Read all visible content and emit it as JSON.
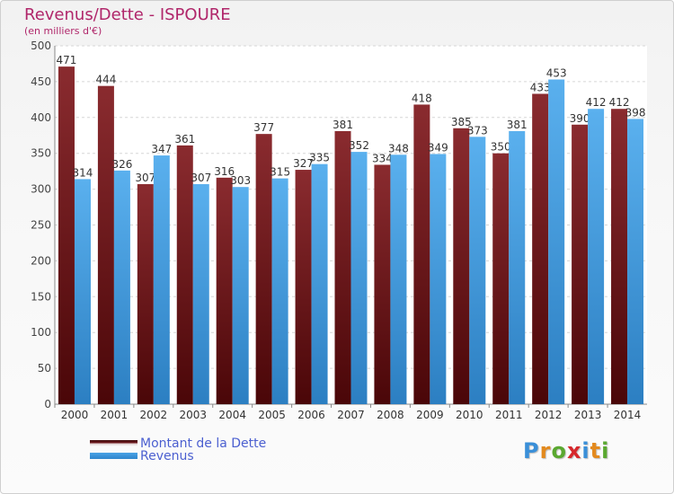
{
  "header": {
    "title": "Revenus/Dette - ISPOURE",
    "subtitle": "(en milliers d'€)"
  },
  "chart_data": {
    "type": "bar",
    "categories": [
      "2000",
      "2001",
      "2002",
      "2003",
      "2004",
      "2005",
      "2006",
      "2007",
      "2008",
      "2009",
      "2010",
      "2011",
      "2012",
      "2013",
      "2014"
    ],
    "series": [
      {
        "name": "Montant de la Dette",
        "color": "#7a1f24",
        "values": [
          471,
          444,
          307,
          361,
          316,
          377,
          327,
          381,
          334,
          418,
          385,
          350,
          433,
          390,
          412
        ]
      },
      {
        "name": "Revenus",
        "color": "#4aa3e6",
        "values": [
          314,
          326,
          347,
          307,
          303,
          315,
          335,
          352,
          348,
          349,
          373,
          381,
          453,
          412,
          398
        ]
      }
    ],
    "ylim": [
      0,
      500
    ],
    "yticks": [
      0,
      50,
      100,
      150,
      200,
      250,
      300,
      350,
      400,
      450,
      500
    ],
    "grid": true,
    "legend": "bottom-left"
  },
  "legend": {
    "items": [
      {
        "label": "Montant de la Dette",
        "color": "#7a1f24"
      },
      {
        "label": "Revenus",
        "color": "#4aa3e6"
      }
    ]
  },
  "logo": {
    "letters": [
      "P",
      "r",
      "o",
      "x",
      "i",
      "t",
      "i"
    ],
    "colors": [
      "#3a8fd8",
      "#e38a1e",
      "#5aa830",
      "#d6282c",
      "#3a8fd8",
      "#e38a1e",
      "#5aa830"
    ]
  }
}
